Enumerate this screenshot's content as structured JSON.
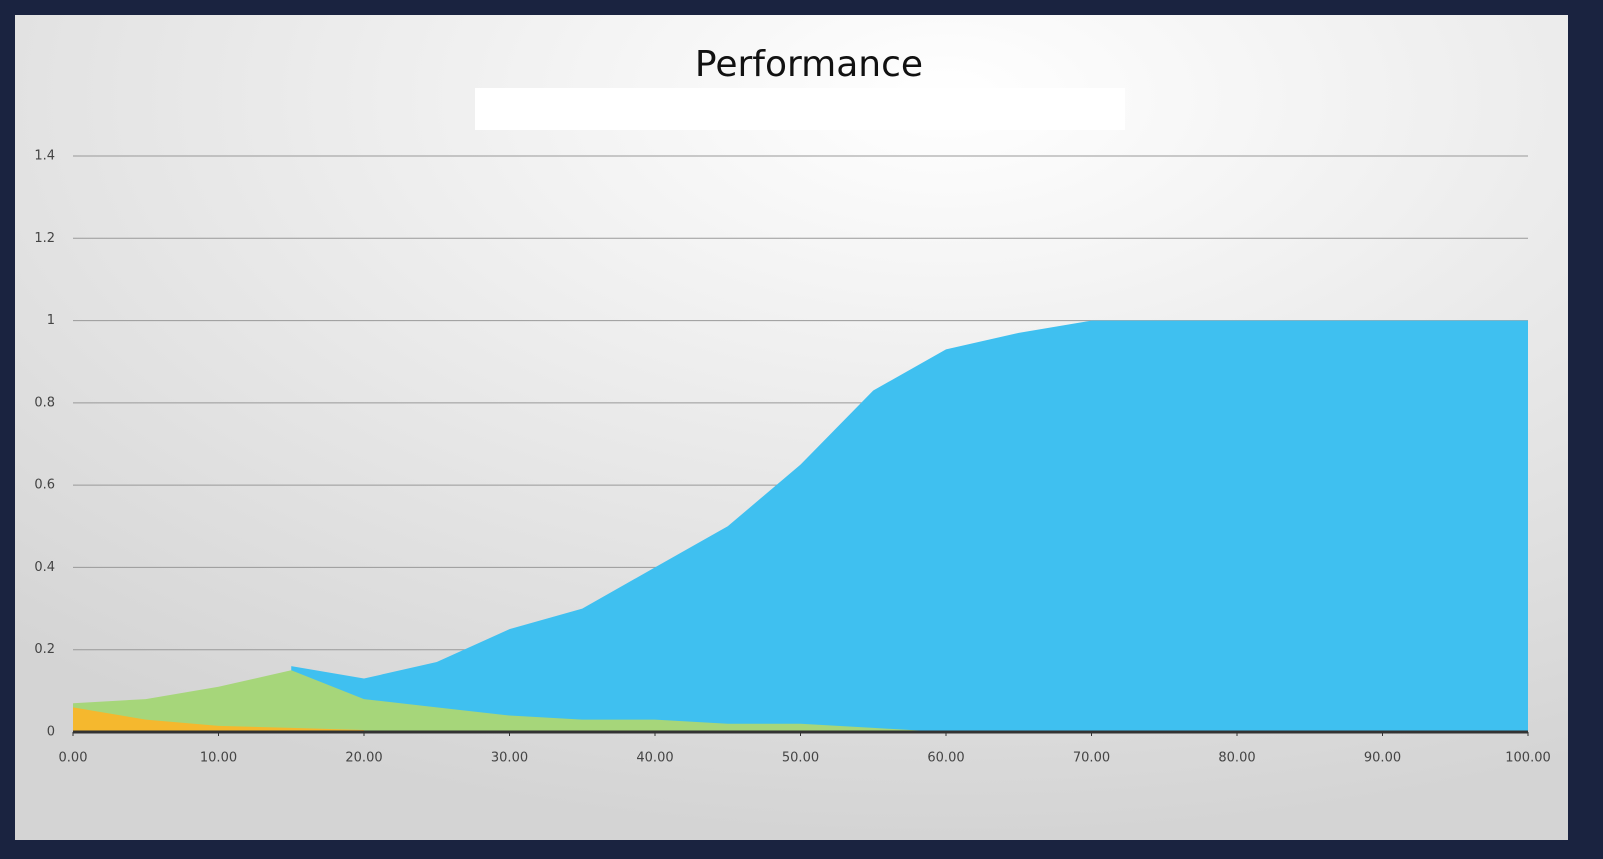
{
  "chart_data": {
    "type": "area",
    "title": "Performance",
    "x": [
      0,
      5,
      10,
      15,
      20,
      25,
      30,
      35,
      40,
      45,
      50,
      55,
      60,
      65,
      70,
      75,
      80,
      85,
      90,
      95,
      100
    ],
    "series": [
      {
        "color": "#3fc0f0",
        "values": [
          null,
          null,
          null,
          0.16,
          0.13,
          0.17,
          0.25,
          0.3,
          0.4,
          0.5,
          0.65,
          0.83,
          0.93,
          0.97,
          1,
          1,
          1,
          1,
          1,
          1,
          1
        ]
      },
      {
        "color": "#a6d67a",
        "values": [
          0.07,
          0.08,
          0.11,
          0.15,
          0.08,
          0.06,
          0.04,
          0.03,
          0.03,
          0.02,
          0.02,
          0.01,
          0,
          null,
          null,
          null,
          null,
          null,
          null,
          null,
          null
        ]
      },
      {
        "color": "#f5b82e",
        "values": [
          0.06,
          0.03,
          0.015,
          0.01,
          0.005,
          null,
          null,
          null,
          null,
          null,
          null,
          null,
          null,
          null,
          null,
          null,
          null,
          null,
          null,
          null,
          null
        ]
      }
    ],
    "xlim": [
      0,
      100
    ],
    "xticks": [
      {
        "value": 0,
        "label": "0.00"
      },
      {
        "value": 10,
        "label": "10.00"
      },
      {
        "value": 20,
        "label": "20.00"
      },
      {
        "value": 30,
        "label": "30.00"
      },
      {
        "value": 40,
        "label": "40.00"
      },
      {
        "value": 50,
        "label": "50.00"
      },
      {
        "value": 60,
        "label": "60.00"
      },
      {
        "value": 70,
        "label": "70.00"
      },
      {
        "value": 80,
        "label": "80.00"
      },
      {
        "value": 90,
        "label": "90.00"
      },
      {
        "value": 100,
        "label": "100.00"
      }
    ],
    "ylim": [
      0,
      1.4
    ],
    "yticks": [
      0,
      0.2,
      0.4,
      0.6,
      0.8,
      1,
      1.2,
      1.4
    ],
    "grid": true
  }
}
